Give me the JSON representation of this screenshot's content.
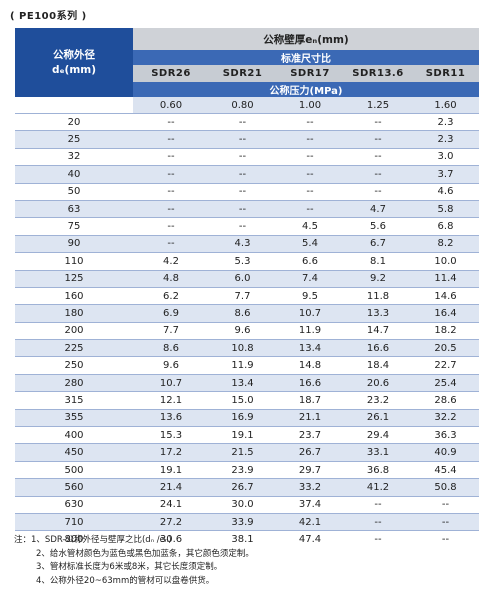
{
  "caption": "( PE100系列 )",
  "header": {
    "dn_label_line1": "公称外径",
    "dn_label_line2": "dₑ(mm)",
    "wall_title": "公称壁厚eₙ(mm)",
    "sdr_title": "标准尺寸比",
    "pressure_title": "公称压力(MPa)",
    "sdr_columns": [
      "SDR26",
      "SDR21",
      "SDR17",
      "SDR13.6",
      "SDR11"
    ],
    "pressure_values": [
      "0.60",
      "0.80",
      "1.00",
      "1.25",
      "1.60"
    ]
  },
  "rows": [
    {
      "dn": "20",
      "v": [
        "--",
        "--",
        "--",
        "--",
        "2.3"
      ]
    },
    {
      "dn": "25",
      "v": [
        "--",
        "--",
        "--",
        "--",
        "2.3"
      ]
    },
    {
      "dn": "32",
      "v": [
        "--",
        "--",
        "--",
        "--",
        "3.0"
      ]
    },
    {
      "dn": "40",
      "v": [
        "--",
        "--",
        "--",
        "--",
        "3.7"
      ]
    },
    {
      "dn": "50",
      "v": [
        "--",
        "--",
        "--",
        "--",
        "4.6"
      ]
    },
    {
      "dn": "63",
      "v": [
        "--",
        "--",
        "--",
        "4.7",
        "5.8"
      ]
    },
    {
      "dn": "75",
      "v": [
        "--",
        "--",
        "4.5",
        "5.6",
        "6.8"
      ]
    },
    {
      "dn": "90",
      "v": [
        "--",
        "4.3",
        "5.4",
        "6.7",
        "8.2"
      ]
    },
    {
      "dn": "110",
      "v": [
        "4.2",
        "5.3",
        "6.6",
        "8.1",
        "10.0"
      ]
    },
    {
      "dn": "125",
      "v": [
        "4.8",
        "6.0",
        "7.4",
        "9.2",
        "11.4"
      ]
    },
    {
      "dn": "160",
      "v": [
        "6.2",
        "7.7",
        "9.5",
        "11.8",
        "14.6"
      ]
    },
    {
      "dn": "180",
      "v": [
        "6.9",
        "8.6",
        "10.7",
        "13.3",
        "16.4"
      ]
    },
    {
      "dn": "200",
      "v": [
        "7.7",
        "9.6",
        "11.9",
        "14.7",
        "18.2"
      ]
    },
    {
      "dn": "225",
      "v": [
        "8.6",
        "10.8",
        "13.4",
        "16.6",
        "20.5"
      ]
    },
    {
      "dn": "250",
      "v": [
        "9.6",
        "11.9",
        "14.8",
        "18.4",
        "22.7"
      ]
    },
    {
      "dn": "280",
      "v": [
        "10.7",
        "13.4",
        "16.6",
        "20.6",
        "25.4"
      ]
    },
    {
      "dn": "315",
      "v": [
        "12.1",
        "15.0",
        "18.7",
        "23.2",
        "28.6"
      ]
    },
    {
      "dn": "355",
      "v": [
        "13.6",
        "16.9",
        "21.1",
        "26.1",
        "32.2"
      ]
    },
    {
      "dn": "400",
      "v": [
        "15.3",
        "19.1",
        "23.7",
        "29.4",
        "36.3"
      ]
    },
    {
      "dn": "450",
      "v": [
        "17.2",
        "21.5",
        "26.7",
        "33.1",
        "40.9"
      ]
    },
    {
      "dn": "500",
      "v": [
        "19.1",
        "23.9",
        "29.7",
        "36.8",
        "45.4"
      ]
    },
    {
      "dn": "560",
      "v": [
        "21.4",
        "26.7",
        "33.2",
        "41.2",
        "50.8"
      ]
    },
    {
      "dn": "630",
      "v": [
        "24.1",
        "30.0",
        "37.4",
        "--",
        "--"
      ]
    },
    {
      "dn": "710",
      "v": [
        "27.2",
        "33.9",
        "42.1",
        "--",
        "--"
      ]
    },
    {
      "dn": "800",
      "v": [
        "30.6",
        "38.1",
        "47.4",
        "--",
        "--"
      ]
    }
  ],
  "notes": {
    "lead": "注：",
    "items": [
      "1、SDR-公称外径与壁厚之比(dₙ /eₙ)",
      "2、给水管材颜色为蓝色或黑色加蓝条，其它颜色须定制。",
      "3、管材标准长度为6米或8米，其它长度须定制。",
      "4、公称外径20~63mm的管材可以盘卷供货。"
    ]
  }
}
